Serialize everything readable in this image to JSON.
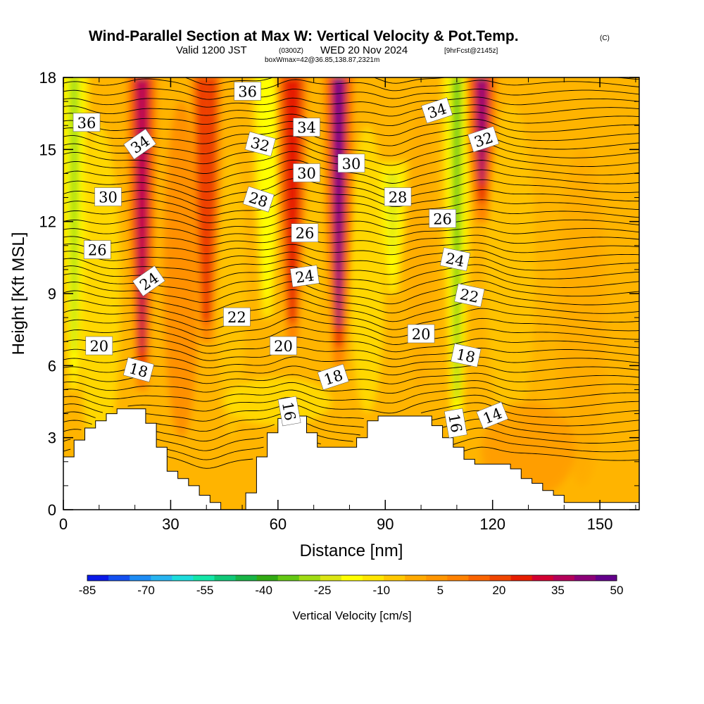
{
  "chart_data": {
    "type": "heatmap",
    "title": "Wind-Parallel Section at Max W: Vertical Velocity & Pot.Temp.",
    "title_mark": "(C)",
    "subtitle_a": "Valid 1200 JST",
    "subtitle_b": "(0300Z)",
    "subtitle_c": "WED 20 Nov 2024",
    "subtitle_d": "[9hrFcst@2145z]",
    "subtitle_2": "boxWmax=42@36.85,138.87,2321m",
    "xlabel": "Distance [nm]",
    "ylabel": "Height [Kft MSL]",
    "xlim": [
      0,
      161
    ],
    "ylim": [
      0,
      18
    ],
    "x_ticks": [
      0,
      30,
      60,
      90,
      120,
      150
    ],
    "y_ticks": [
      0,
      3,
      6,
      9,
      12,
      15,
      18
    ],
    "colorbar": {
      "title": "Vertical Velocity [cm/s]",
      "labels": [
        "-85",
        "-70",
        "-55",
        "-40",
        "-25",
        "-10",
        "5",
        "20",
        "35",
        "50"
      ],
      "colors": [
        "#0a1ae8",
        "#1450f0",
        "#1e8cf4",
        "#28b4f0",
        "#1edcdc",
        "#14e6a8",
        "#10c878",
        "#18b446",
        "#32aa14",
        "#64c814",
        "#a0dc14",
        "#dce614",
        "#ffff00",
        "#ffe600",
        "#ffc800",
        "#ffaa00",
        "#ff9600",
        "#ff8200",
        "#fa6400",
        "#f04600",
        "#e61e00",
        "#d20032",
        "#b4005a",
        "#8c0078",
        "#64008c"
      ]
    },
    "updraft_cores": [
      {
        "x": 3,
        "ytop": 18,
        "ybot": 5,
        "w": -30
      },
      {
        "x": 22,
        "ytop": 18,
        "ybot": 5,
        "w": 40
      },
      {
        "x": 40,
        "ytop": 18,
        "ybot": 7,
        "w": 20
      },
      {
        "x": 57,
        "ytop": 18,
        "ybot": 8,
        "w": -20
      },
      {
        "x": 64,
        "ytop": 18,
        "ybot": 7,
        "w": 25
      },
      {
        "x": 77,
        "ytop": 18,
        "ybot": 6,
        "w": 50
      },
      {
        "x": 92,
        "ytop": 14,
        "ybot": 9,
        "w": -25
      },
      {
        "x": 110,
        "ytop": 18,
        "ybot": 3,
        "w": -35
      },
      {
        "x": 117,
        "ytop": 18,
        "ybot": 12,
        "w": 45
      }
    ],
    "terrain_kft": [
      [
        0,
        2.2
      ],
      [
        3,
        2.2
      ],
      [
        3,
        2.9
      ],
      [
        6,
        2.9
      ],
      [
        6,
        3.4
      ],
      [
        9,
        3.4
      ],
      [
        9,
        3.7
      ],
      [
        12,
        3.7
      ],
      [
        12,
        4.0
      ],
      [
        15,
        4.0
      ],
      [
        15,
        4.2
      ],
      [
        23,
        4.2
      ],
      [
        23,
        3.6
      ],
      [
        26,
        3.6
      ],
      [
        26,
        2.6
      ],
      [
        29,
        2.6
      ],
      [
        29,
        1.6
      ],
      [
        32,
        1.6
      ],
      [
        32,
        1.3
      ],
      [
        35,
        1.3
      ],
      [
        35,
        1.0
      ],
      [
        38,
        1.0
      ],
      [
        38,
        0.6
      ],
      [
        41,
        0.6
      ],
      [
        41,
        0.3
      ],
      [
        44,
        0.3
      ],
      [
        44,
        0.0
      ],
      [
        51,
        0.0
      ],
      [
        51,
        0.7
      ],
      [
        54,
        0.7
      ],
      [
        54,
        2.2
      ],
      [
        57,
        2.2
      ],
      [
        57,
        3.2
      ],
      [
        60,
        3.2
      ],
      [
        60,
        3.8
      ],
      [
        63,
        3.8
      ],
      [
        63,
        3.9
      ],
      [
        68,
        3.9
      ],
      [
        68,
        3.2
      ],
      [
        71,
        3.2
      ],
      [
        71,
        2.6
      ],
      [
        74,
        2.6
      ],
      [
        74,
        2.6
      ],
      [
        77,
        2.6
      ],
      [
        77,
        2.6
      ],
      [
        82,
        2.6
      ],
      [
        82,
        3.0
      ],
      [
        85,
        3.0
      ],
      [
        85,
        3.7
      ],
      [
        88,
        3.7
      ],
      [
        88,
        3.9
      ],
      [
        103,
        3.9
      ],
      [
        103,
        3.5
      ],
      [
        106,
        3.5
      ],
      [
        106,
        3.0
      ],
      [
        109,
        3.0
      ],
      [
        109,
        2.6
      ],
      [
        112,
        2.6
      ],
      [
        112,
        2.1
      ],
      [
        115,
        2.1
      ],
      [
        115,
        1.9
      ],
      [
        125,
        1.9
      ],
      [
        125,
        1.7
      ],
      [
        128,
        1.7
      ],
      [
        128,
        1.3
      ],
      [
        131,
        1.3
      ],
      [
        131,
        1.1
      ],
      [
        134,
        1.1
      ],
      [
        134,
        0.8
      ],
      [
        137,
        0.8
      ],
      [
        137,
        0.6
      ],
      [
        140,
        0.6
      ],
      [
        140,
        0.3
      ],
      [
        161,
        0.3
      ]
    ],
    "contour_labels": [
      {
        "text": "36",
        "x": 6.5,
        "y": 16.1,
        "angle": 0
      },
      {
        "text": "36",
        "x": 51.5,
        "y": 17.4,
        "angle": 0
      },
      {
        "text": "34",
        "x": 21.5,
        "y": 15.2,
        "angle": -35
      },
      {
        "text": "34",
        "x": 68,
        "y": 15.9,
        "angle": 0
      },
      {
        "text": "34",
        "x": 104.5,
        "y": 16.6,
        "angle": -18
      },
      {
        "text": "32",
        "x": 55,
        "y": 15.2,
        "angle": 15
      },
      {
        "text": "32",
        "x": 117.5,
        "y": 15.4,
        "angle": -18
      },
      {
        "text": "30",
        "x": 12.5,
        "y": 13.0,
        "angle": 0
      },
      {
        "text": "30",
        "x": 68,
        "y": 14.0,
        "angle": 0
      },
      {
        "text": "30",
        "x": 80.5,
        "y": 14.4,
        "angle": 0
      },
      {
        "text": "28",
        "x": 54.5,
        "y": 12.9,
        "angle": 18
      },
      {
        "text": "28",
        "x": 93.5,
        "y": 13.0,
        "angle": 0
      },
      {
        "text": "26",
        "x": 9.5,
        "y": 10.8,
        "angle": 0
      },
      {
        "text": "26",
        "x": 67.5,
        "y": 11.5,
        "angle": 0
      },
      {
        "text": "26",
        "x": 106,
        "y": 12.1,
        "angle": 0
      },
      {
        "text": "24",
        "x": 24,
        "y": 9.5,
        "angle": -35
      },
      {
        "text": "24",
        "x": 67.5,
        "y": 9.7,
        "angle": -8
      },
      {
        "text": "24",
        "x": 109.5,
        "y": 10.4,
        "angle": 12
      },
      {
        "text": "22",
        "x": 48.5,
        "y": 8.0,
        "angle": 0
      },
      {
        "text": "22",
        "x": 113.5,
        "y": 8.9,
        "angle": 12
      },
      {
        "text": "20",
        "x": 10,
        "y": 6.8,
        "angle": 0
      },
      {
        "text": "20",
        "x": 61.5,
        "y": 6.8,
        "angle": 0
      },
      {
        "text": "20",
        "x": 100,
        "y": 7.3,
        "angle": 0
      },
      {
        "text": "18",
        "x": 21,
        "y": 5.8,
        "angle": 15
      },
      {
        "text": "18",
        "x": 75.5,
        "y": 5.5,
        "angle": -18
      },
      {
        "text": "18",
        "x": 112.5,
        "y": 6.4,
        "angle": 12
      },
      {
        "text": "16",
        "x": 63,
        "y": 4.1,
        "angle": 80
      },
      {
        "text": "16",
        "x": 109.5,
        "y": 3.6,
        "angle": 80
      },
      {
        "text": "14",
        "x": 120,
        "y": 3.9,
        "angle": -22
      }
    ]
  }
}
